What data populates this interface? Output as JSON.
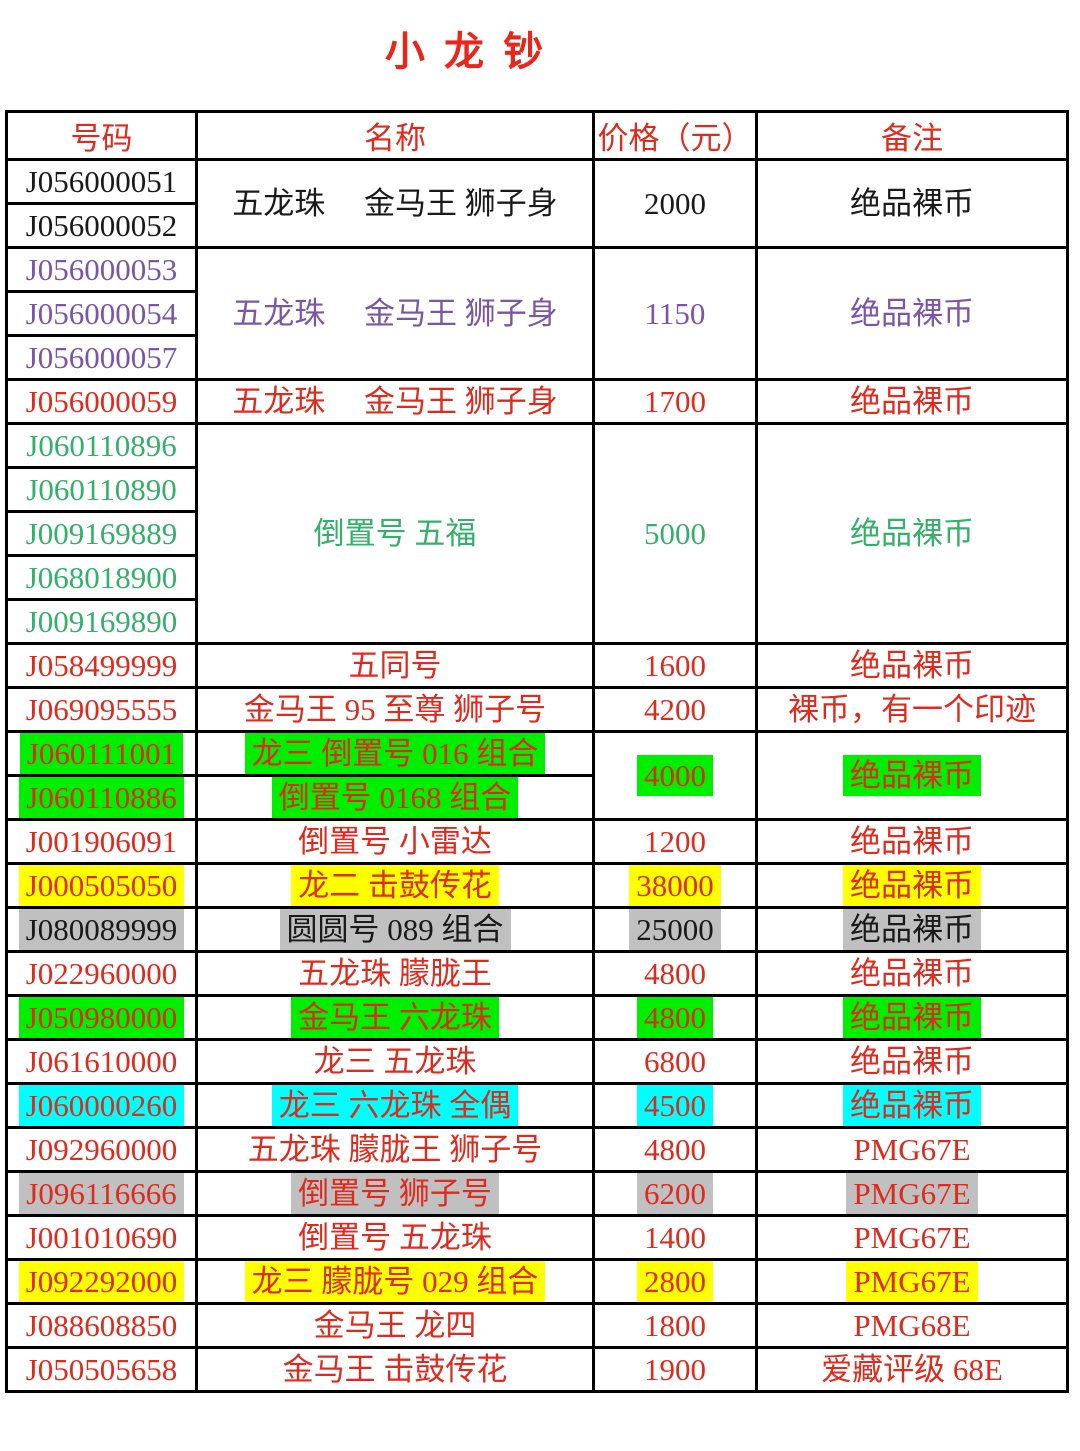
{
  "title": "小 龙 钞",
  "colors": {
    "title-red": "#e8261b",
    "header-red": "#de2b1e",
    "red": "#de2b1e",
    "black": "#1a1a1a",
    "purple": "#7b55a8",
    "green": "#34b06a",
    "hl-green": "#00ee00",
    "hl-yellow": "#ffff00",
    "hl-gray": "#c0c0c0",
    "hl-cyan": "#00ffff",
    "border": "#000000"
  },
  "table": {
    "headers": [
      "号码",
      "名称",
      "价格（元）",
      "备注"
    ],
    "rows": [
      {
        "color": "black",
        "cells": [
          {
            "col": "number",
            "text": "J056000051"
          },
          {
            "col": "name",
            "text": "五龙珠　 金马王 狮子身",
            "rowspan": 2
          },
          {
            "col": "price",
            "text": "2000",
            "rowspan": 2
          },
          {
            "col": "note",
            "text": "绝品裸币",
            "rowspan": 2
          }
        ]
      },
      {
        "color": "black",
        "cells": [
          {
            "col": "number",
            "text": "J056000052"
          }
        ]
      },
      {
        "color": "purple",
        "cells": [
          {
            "col": "number",
            "text": "J056000053"
          },
          {
            "col": "name",
            "text": "五龙珠　 金马王 狮子身",
            "rowspan": 3
          },
          {
            "col": "price",
            "text": "1150",
            "rowspan": 3
          },
          {
            "col": "note",
            "text": "绝品裸币",
            "rowspan": 3
          }
        ]
      },
      {
        "color": "purple",
        "cells": [
          {
            "col": "number",
            "text": "J056000054"
          }
        ]
      },
      {
        "color": "purple",
        "cells": [
          {
            "col": "number",
            "text": "J056000057"
          }
        ]
      },
      {
        "color": "red",
        "cells": [
          {
            "col": "number",
            "text": "J056000059"
          },
          {
            "col": "name",
            "text": "五龙珠　 金马王 狮子身"
          },
          {
            "col": "price",
            "text": "1700"
          },
          {
            "col": "note",
            "text": "绝品裸币"
          }
        ]
      },
      {
        "color": "green",
        "cells": [
          {
            "col": "number",
            "text": "J060110896"
          },
          {
            "col": "name",
            "text": "倒置号 五福",
            "rowspan": 5
          },
          {
            "col": "price",
            "text": "5000",
            "rowspan": 5
          },
          {
            "col": "note",
            "text": "绝品裸币",
            "rowspan": 5
          }
        ]
      },
      {
        "color": "green",
        "cells": [
          {
            "col": "number",
            "text": "J060110890"
          }
        ]
      },
      {
        "color": "green",
        "cells": [
          {
            "col": "number",
            "text": "J009169889"
          }
        ]
      },
      {
        "color": "green",
        "cells": [
          {
            "col": "number",
            "text": "J068018900"
          }
        ]
      },
      {
        "color": "green",
        "cells": [
          {
            "col": "number",
            "text": "J009169890"
          }
        ]
      },
      {
        "color": "red",
        "cells": [
          {
            "col": "number",
            "text": "J058499999"
          },
          {
            "col": "name",
            "text": "五同号"
          },
          {
            "col": "price",
            "text": "1600"
          },
          {
            "col": "note",
            "text": "绝品裸币"
          }
        ]
      },
      {
        "color": "red",
        "cells": [
          {
            "col": "number",
            "text": "J069095555"
          },
          {
            "col": "name",
            "text": "金马王 95 至尊 狮子号"
          },
          {
            "col": "price",
            "text": "4200"
          },
          {
            "col": "note",
            "text": "裸币，有一个印迹"
          }
        ]
      },
      {
        "color": "red",
        "cells": [
          {
            "col": "number",
            "text": "J060111001",
            "hl": "green"
          },
          {
            "col": "name",
            "text": "龙三 倒置号 016 组合",
            "hl": "green"
          },
          {
            "col": "price",
            "text": "4000",
            "rowspan": 2,
            "hl": "green"
          },
          {
            "col": "note",
            "text": "绝品裸币",
            "rowspan": 2,
            "hl": "green"
          }
        ]
      },
      {
        "color": "red",
        "cells": [
          {
            "col": "number",
            "text": "J060110886",
            "hl": "green"
          },
          {
            "col": "name",
            "text": "倒置号 0168 组合",
            "hl": "green"
          }
        ]
      },
      {
        "color": "red",
        "cells": [
          {
            "col": "number",
            "text": "J001906091"
          },
          {
            "col": "name",
            "text": "倒置号 小雷达"
          },
          {
            "col": "price",
            "text": "1200"
          },
          {
            "col": "note",
            "text": "绝品裸币"
          }
        ]
      },
      {
        "color": "red",
        "cells": [
          {
            "col": "number",
            "text": "J000505050",
            "hl": "yellow"
          },
          {
            "col": "name",
            "text": "龙二 击鼓传花",
            "hl": "yellow"
          },
          {
            "col": "price",
            "text": "38000",
            "hl": "yellow"
          },
          {
            "col": "note",
            "text": "绝品裸币",
            "hl": "yellow"
          }
        ]
      },
      {
        "color": "black",
        "cells": [
          {
            "col": "number",
            "text": "J080089999",
            "hl": "gray"
          },
          {
            "col": "name",
            "text": "圆圆号 089 组合",
            "hl": "gray"
          },
          {
            "col": "price",
            "text": "25000",
            "hl": "gray"
          },
          {
            "col": "note",
            "text": "绝品裸币",
            "hl": "gray"
          }
        ]
      },
      {
        "color": "red",
        "cells": [
          {
            "col": "number",
            "text": "J022960000"
          },
          {
            "col": "name",
            "text": "五龙珠 朦胧王"
          },
          {
            "col": "price",
            "text": "4800"
          },
          {
            "col": "note",
            "text": "绝品裸币"
          }
        ]
      },
      {
        "color": "red",
        "cells": [
          {
            "col": "number",
            "text": "J050980000",
            "hl": "green"
          },
          {
            "col": "name",
            "text": "金马王 六龙珠",
            "hl": "green"
          },
          {
            "col": "price",
            "text": "4800",
            "hl": "green"
          },
          {
            "col": "note",
            "text": "绝品裸币",
            "hl": "green"
          }
        ]
      },
      {
        "color": "red",
        "cells": [
          {
            "col": "number",
            "text": "J061610000"
          },
          {
            "col": "name",
            "text": "龙三 五龙珠"
          },
          {
            "col": "price",
            "text": "6800"
          },
          {
            "col": "note",
            "text": "绝品裸币"
          }
        ]
      },
      {
        "color": "red",
        "cells": [
          {
            "col": "number",
            "text": "J060000260",
            "hl": "cyan"
          },
          {
            "col": "name",
            "text": "龙三 六龙珠 全偶",
            "hl": "cyan"
          },
          {
            "col": "price",
            "text": "4500",
            "hl": "cyan"
          },
          {
            "col": "note",
            "text": "绝品裸币",
            "hl": "cyan"
          }
        ]
      },
      {
        "color": "red",
        "cells": [
          {
            "col": "number",
            "text": "J092960000"
          },
          {
            "col": "name",
            "text": "五龙珠 朦胧王 狮子号"
          },
          {
            "col": "price",
            "text": "4800"
          },
          {
            "col": "note",
            "text": "PMG67E"
          }
        ]
      },
      {
        "color": "red",
        "cells": [
          {
            "col": "number",
            "text": "J096116666",
            "hl": "gray"
          },
          {
            "col": "name",
            "text": "倒置号 狮子号",
            "hl": "gray"
          },
          {
            "col": "price",
            "text": "6200",
            "hl": "gray"
          },
          {
            "col": "note",
            "text": "PMG67E",
            "hl": "gray"
          }
        ]
      },
      {
        "color": "red",
        "cells": [
          {
            "col": "number",
            "text": "J001010690"
          },
          {
            "col": "name",
            "text": "倒置号 五龙珠"
          },
          {
            "col": "price",
            "text": "1400"
          },
          {
            "col": "note",
            "text": "PMG67E"
          }
        ]
      },
      {
        "color": "red",
        "cells": [
          {
            "col": "number",
            "text": "J092292000",
            "hl": "yellow"
          },
          {
            "col": "name",
            "text": "龙三 朦胧号 029 组合",
            "hl": "yellow"
          },
          {
            "col": "price",
            "text": "2800",
            "hl": "yellow"
          },
          {
            "col": "note",
            "text": "PMG67E",
            "hl": "yellow"
          }
        ]
      },
      {
        "color": "red",
        "cells": [
          {
            "col": "number",
            "text": "J088608850"
          },
          {
            "col": "name",
            "text": "金马王 龙四"
          },
          {
            "col": "price",
            "text": "1800"
          },
          {
            "col": "note",
            "text": "PMG68E"
          }
        ]
      },
      {
        "color": "red",
        "cells": [
          {
            "col": "number",
            "text": "J050505658"
          },
          {
            "col": "name",
            "text": "金马王 击鼓传花"
          },
          {
            "col": "price",
            "text": "1900"
          },
          {
            "col": "note",
            "text": "爱藏评级 68E"
          }
        ]
      }
    ]
  }
}
